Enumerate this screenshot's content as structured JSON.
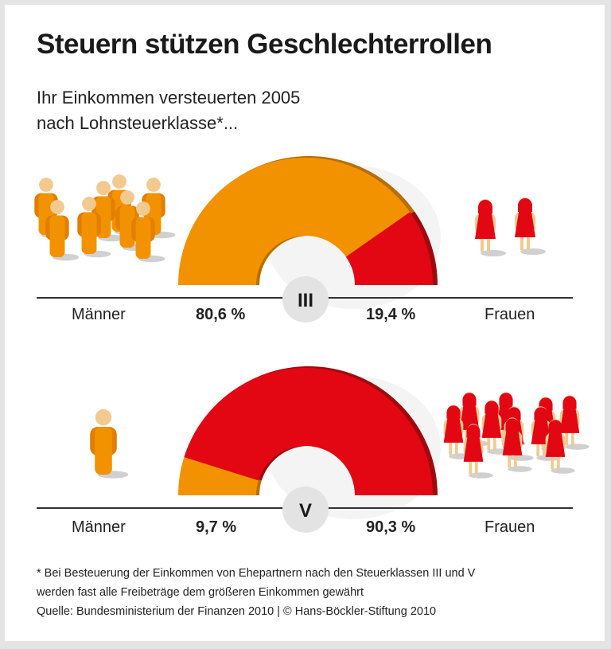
{
  "title": "Steuern stützen Geschlechterrollen",
  "subtitle_line1": "Ihr Einkommen versteuerten 2005",
  "subtitle_line2": "nach Lohnsteuerklasse*...",
  "colors": {
    "men": "#f39200",
    "women": "#e30613"
  },
  "chart_data": [
    {
      "type": "pie",
      "subtype": "half-donut",
      "title": "III",
      "categories": [
        "Männer",
        "Frauen"
      ],
      "values": [
        80.6,
        19.4
      ],
      "value_labels": [
        "80,6 %",
        "19,4 %"
      ]
    },
    {
      "type": "pie",
      "subtype": "half-donut",
      "title": "V",
      "categories": [
        "Männer",
        "Frauen"
      ],
      "values": [
        9.7,
        90.3
      ],
      "value_labels": [
        "9,7 %",
        "90,3 %"
      ]
    }
  ],
  "footnote_line1": "* Bei Besteuerung der Einkommen von Ehepartnern nach den Steuerklassen III und V",
  "footnote_line2": "werden fast alle Freibeträge dem größeren Einkommen gewährt",
  "source": "Quelle: Bundesministerium der Finanzen 2010 | © Hans-Böckler-Stiftung 2010"
}
